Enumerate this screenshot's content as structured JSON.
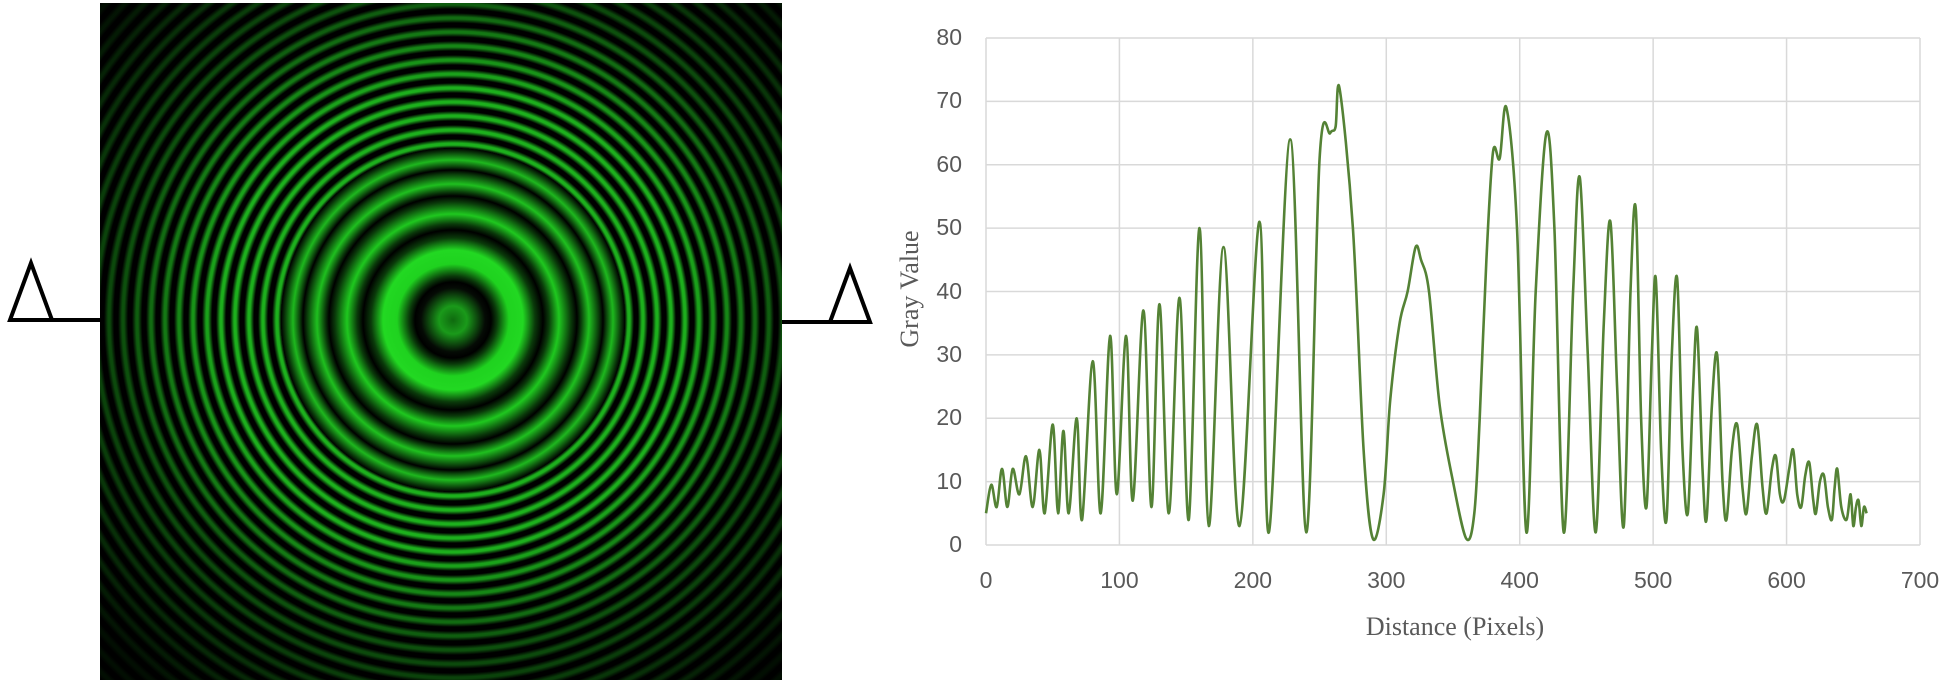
{
  "figure": {
    "left_panel": {
      "description": "interference-fringe-image",
      "ring_color": "#22d822",
      "background_color": "#000000"
    },
    "markers": {
      "left": "triangle-marker",
      "right": "triangle-marker"
    }
  },
  "chart_data": {
    "type": "line",
    "title": "",
    "xlabel": "Distance (Pixels)",
    "ylabel": "Gray Value",
    "xlim": [
      0,
      700
    ],
    "ylim": [
      0,
      80
    ],
    "x_ticks": [
      "0",
      "100",
      "200",
      "300",
      "400",
      "500",
      "600",
      "700"
    ],
    "y_ticks": [
      "0",
      "10",
      "20",
      "30",
      "40",
      "50",
      "60",
      "70",
      "80"
    ],
    "grid": true,
    "legend": null,
    "line_color": "#548235",
    "series": [
      {
        "name": "Gray Value",
        "x": [
          0,
          4,
          8,
          12,
          16,
          20,
          25,
          30,
          35,
          40,
          44,
          50,
          54,
          58,
          62,
          68,
          72,
          80,
          86,
          93,
          98,
          105,
          110,
          118,
          124,
          130,
          137,
          145,
          152,
          160,
          167,
          178,
          190,
          205,
          212,
          228,
          240,
          250,
          258,
          262,
          265,
          275,
          283,
          290,
          298,
          303,
          310,
          316,
          322,
          326,
          332,
          340,
          350,
          360,
          366,
          370,
          375,
          380,
          385,
          390,
          398,
          405,
          412,
          420,
          426,
          433,
          440,
          445,
          451,
          457,
          463,
          468,
          473,
          478,
          483,
          487,
          491,
          495,
          499,
          502,
          506,
          510,
          514,
          518,
          522,
          526,
          530,
          533,
          537,
          540,
          544,
          548,
          552,
          555,
          559,
          563,
          567,
          570,
          574,
          578,
          582,
          585,
          589,
          592,
          595,
          598,
          602,
          605,
          608,
          611,
          614,
          617,
          620,
          622,
          625,
          628,
          631,
          634,
          636,
          638,
          641,
          645,
          648,
          650,
          652,
          654,
          656,
          658,
          660
        ],
        "values": [
          5,
          9.5,
          6,
          12,
          6,
          12,
          8,
          14,
          6,
          15,
          5,
          19,
          5,
          18,
          5,
          20,
          4,
          29,
          5,
          33,
          8,
          33,
          7,
          37,
          6,
          38,
          5,
          39,
          4,
          50,
          3,
          47,
          3,
          51,
          2,
          64,
          2,
          61,
          65,
          66,
          72,
          50,
          15,
          1,
          8,
          23,
          35,
          40,
          47,
          45,
          40,
          22,
          10,
          1,
          5,
          20,
          45,
          62,
          61,
          69,
          50,
          2,
          40,
          65,
          50,
          2,
          40,
          58,
          30,
          2,
          35,
          51,
          25,
          3,
          40,
          53,
          20,
          6,
          30,
          42,
          15,
          4,
          30,
          42,
          15,
          5,
          25,
          34,
          12,
          4,
          22,
          30,
          10,
          4,
          15,
          19,
          9,
          5,
          14,
          19,
          9,
          5,
          12,
          14,
          8,
          7,
          12,
          15,
          8,
          6,
          11,
          13,
          7,
          5,
          10,
          11,
          6,
          4,
          9,
          12,
          6,
          4,
          8,
          3,
          6,
          7,
          3,
          6,
          5
        ]
      }
    ]
  }
}
